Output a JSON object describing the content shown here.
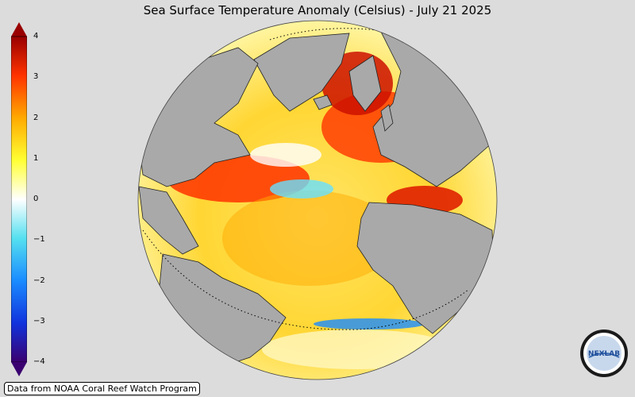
{
  "title": "Sea Surface Temperature Anomaly (Celsius) - July 21 2025",
  "colorbar": {
    "ticks": [
      "4",
      "3",
      "2",
      "1",
      "0",
      "−1",
      "−2",
      "−3",
      "−4"
    ],
    "colors": [
      "#3a0070",
      "#1133dd",
      "#1a8cff",
      "#55e0f0",
      "#ffffff",
      "#ffff33",
      "#ffaa00",
      "#ff3300",
      "#990000"
    ]
  },
  "credit": "Data from NOAA Coral Reef Watch Program",
  "logo_text": "NEXLAB",
  "colors": {
    "background": "#dcdcdc",
    "land": "#a9a9a9",
    "ocean_warm": "#ffcc33"
  }
}
